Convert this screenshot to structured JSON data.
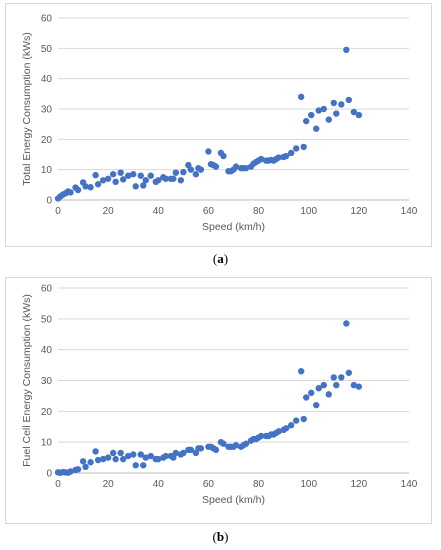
{
  "chart_data": [
    {
      "type": "scatter",
      "panel": "a",
      "caption_letter": "a",
      "xlabel": "Speed (km/h)",
      "ylabel": "Total Energy Consumption (kWs)",
      "xlim": [
        0,
        140
      ],
      "ylim": [
        0,
        60
      ],
      "xticks": [
        "0",
        "20",
        "40",
        "60",
        "80",
        "100",
        "120",
        "140"
      ],
      "yticks": [
        "0",
        "10",
        "20",
        "30",
        "40",
        "50",
        "60"
      ],
      "grid": "horizontal",
      "marker_color": "#4472c4",
      "points": [
        [
          0,
          0.5
        ],
        [
          1,
          1.2
        ],
        [
          2,
          1.8
        ],
        [
          3,
          2.2
        ],
        [
          4,
          2.8
        ],
        [
          5,
          2.5
        ],
        [
          7,
          4.1
        ],
        [
          8,
          3.3
        ],
        [
          10,
          5.8
        ],
        [
          11,
          4.5
        ],
        [
          13,
          4.2
        ],
        [
          15,
          8.2
        ],
        [
          16,
          5.2
        ],
        [
          18,
          6.5
        ],
        [
          20,
          7.0
        ],
        [
          22,
          8.5
        ],
        [
          23,
          6.0
        ],
        [
          25,
          9.0
        ],
        [
          26,
          6.8
        ],
        [
          28,
          8.0
        ],
        [
          30,
          8.5
        ],
        [
          31,
          4.5
        ],
        [
          33,
          8.0
        ],
        [
          34,
          4.8
        ],
        [
          35,
          6.5
        ],
        [
          37,
          8.0
        ],
        [
          39,
          6.0
        ],
        [
          40,
          6.5
        ],
        [
          42,
          7.5
        ],
        [
          43,
          7.0
        ],
        [
          45,
          7.0
        ],
        [
          46,
          7.0
        ],
        [
          47,
          9.0
        ],
        [
          49,
          6.5
        ],
        [
          50,
          9.2
        ],
        [
          52,
          11.5
        ],
        [
          53,
          10.0
        ],
        [
          55,
          8.5
        ],
        [
          56,
          10.5
        ],
        [
          57,
          10.0
        ],
        [
          60,
          16.0
        ],
        [
          61,
          11.8
        ],
        [
          62,
          11.5
        ],
        [
          63,
          11.0
        ],
        [
          65,
          15.5
        ],
        [
          66,
          14.5
        ],
        [
          68,
          9.5
        ],
        [
          69,
          9.5
        ],
        [
          70,
          10.0
        ],
        [
          71,
          11.0
        ],
        [
          73,
          10.5
        ],
        [
          74,
          10.5
        ],
        [
          75,
          10.5
        ],
        [
          77,
          11.0
        ],
        [
          78,
          12.0
        ],
        [
          79,
          12.5
        ],
        [
          80,
          13.0
        ],
        [
          81,
          13.5
        ],
        [
          83,
          13.0
        ],
        [
          84,
          13.0
        ],
        [
          85,
          13.2
        ],
        [
          86,
          13.0
        ],
        [
          87,
          13.5
        ],
        [
          88,
          14.0
        ],
        [
          90,
          14.2
        ],
        [
          91,
          14.5
        ],
        [
          93,
          15.5
        ],
        [
          95,
          17.0
        ],
        [
          97,
          34.0
        ],
        [
          98,
          17.5
        ],
        [
          99,
          26.0
        ],
        [
          101,
          28.0
        ],
        [
          103,
          23.5
        ],
        [
          104,
          29.5
        ],
        [
          106,
          30.0
        ],
        [
          108,
          26.5
        ],
        [
          110,
          32.0
        ],
        [
          111,
          28.5
        ],
        [
          113,
          31.5
        ],
        [
          115,
          49.5
        ],
        [
          116,
          33.0
        ],
        [
          118,
          29.0
        ],
        [
          120,
          28.0
        ]
      ]
    },
    {
      "type": "scatter",
      "panel": "b",
      "caption_letter": "b",
      "xlabel": "Speed (km/h)",
      "ylabel": "Fuel Cell Energy Consumption (kWs)",
      "xlim": [
        0,
        140
      ],
      "ylim": [
        0,
        60
      ],
      "xticks": [
        "0",
        "20",
        "40",
        "60",
        "80",
        "100",
        "120",
        "140"
      ],
      "yticks": [
        "0",
        "10",
        "20",
        "30",
        "40",
        "50",
        "60"
      ],
      "grid": "horizontal",
      "marker_color": "#4472c4",
      "points": [
        [
          0,
          0.2
        ],
        [
          1,
          0.1
        ],
        [
          2,
          0.3
        ],
        [
          3,
          0.2
        ],
        [
          4,
          0.1
        ],
        [
          5,
          0.5
        ],
        [
          7,
          1.0
        ],
        [
          8,
          1.2
        ],
        [
          10,
          3.8
        ],
        [
          11,
          2.0
        ],
        [
          13,
          3.5
        ],
        [
          15,
          7.0
        ],
        [
          16,
          4.2
        ],
        [
          18,
          4.5
        ],
        [
          20,
          5.0
        ],
        [
          22,
          6.5
        ],
        [
          23,
          4.5
        ],
        [
          25,
          6.5
        ],
        [
          26,
          4.5
        ],
        [
          28,
          5.5
        ],
        [
          30,
          6.0
        ],
        [
          31,
          2.5
        ],
        [
          33,
          6.0
        ],
        [
          34,
          2.5
        ],
        [
          35,
          5.0
        ],
        [
          37,
          5.5
        ],
        [
          39,
          4.5
        ],
        [
          40,
          4.5
        ],
        [
          42,
          5.0
        ],
        [
          43,
          5.5
        ],
        [
          45,
          5.5
        ],
        [
          46,
          5.0
        ],
        [
          47,
          6.5
        ],
        [
          49,
          6.0
        ],
        [
          50,
          6.5
        ],
        [
          52,
          7.5
        ],
        [
          53,
          7.5
        ],
        [
          55,
          6.5
        ],
        [
          56,
          8.0
        ],
        [
          57,
          8.0
        ],
        [
          60,
          8.5
        ],
        [
          61,
          8.5
        ],
        [
          62,
          8.0
        ],
        [
          63,
          7.5
        ],
        [
          65,
          10.0
        ],
        [
          66,
          9.5
        ],
        [
          68,
          8.5
        ],
        [
          69,
          8.5
        ],
        [
          70,
          8.5
        ],
        [
          71,
          9.0
        ],
        [
          73,
          8.5
        ],
        [
          74,
          9.0
        ],
        [
          75,
          9.5
        ],
        [
          77,
          10.5
        ],
        [
          78,
          11.0
        ],
        [
          79,
          11.0
        ],
        [
          80,
          11.5
        ],
        [
          81,
          12.0
        ],
        [
          83,
          12.0
        ],
        [
          84,
          12.0
        ],
        [
          85,
          12.5
        ],
        [
          86,
          12.5
        ],
        [
          87,
          13.0
        ],
        [
          88,
          13.5
        ],
        [
          90,
          14.0
        ],
        [
          91,
          14.5
        ],
        [
          93,
          15.5
        ],
        [
          95,
          17.0
        ],
        [
          97,
          33.0
        ],
        [
          98,
          17.5
        ],
        [
          99,
          24.5
        ],
        [
          101,
          26.0
        ],
        [
          103,
          22.0
        ],
        [
          104,
          27.5
        ],
        [
          106,
          28.5
        ],
        [
          108,
          25.5
        ],
        [
          110,
          31.0
        ],
        [
          111,
          28.5
        ],
        [
          113,
          31.0
        ],
        [
          115,
          48.5
        ],
        [
          116,
          32.5
        ],
        [
          118,
          28.5
        ],
        [
          120,
          28.0
        ]
      ]
    }
  ]
}
